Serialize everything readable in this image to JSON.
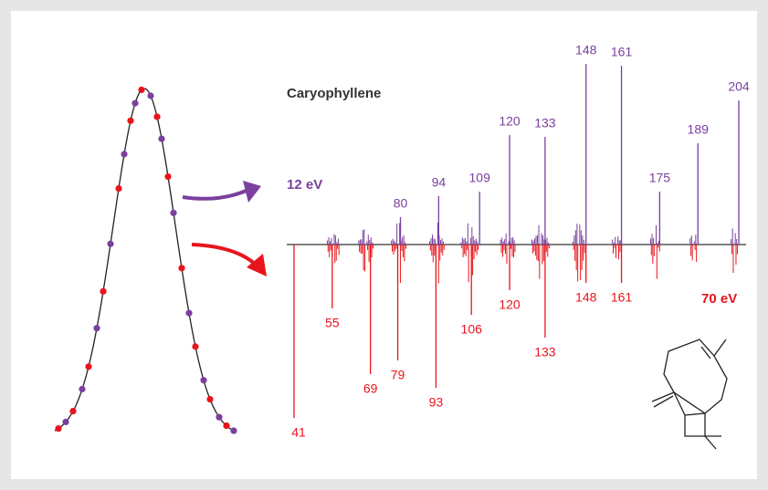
{
  "title": "Caryophyllene",
  "upper_spectrum": {
    "label": "12 eV",
    "peak_labels": [
      80,
      94,
      109,
      120,
      133,
      148,
      161,
      175,
      189,
      204
    ]
  },
  "lower_spectrum": {
    "label": "70 eV",
    "peak_labels": [
      41,
      55,
      69,
      79,
      93,
      106,
      120,
      133,
      148,
      161
    ]
  }
}
